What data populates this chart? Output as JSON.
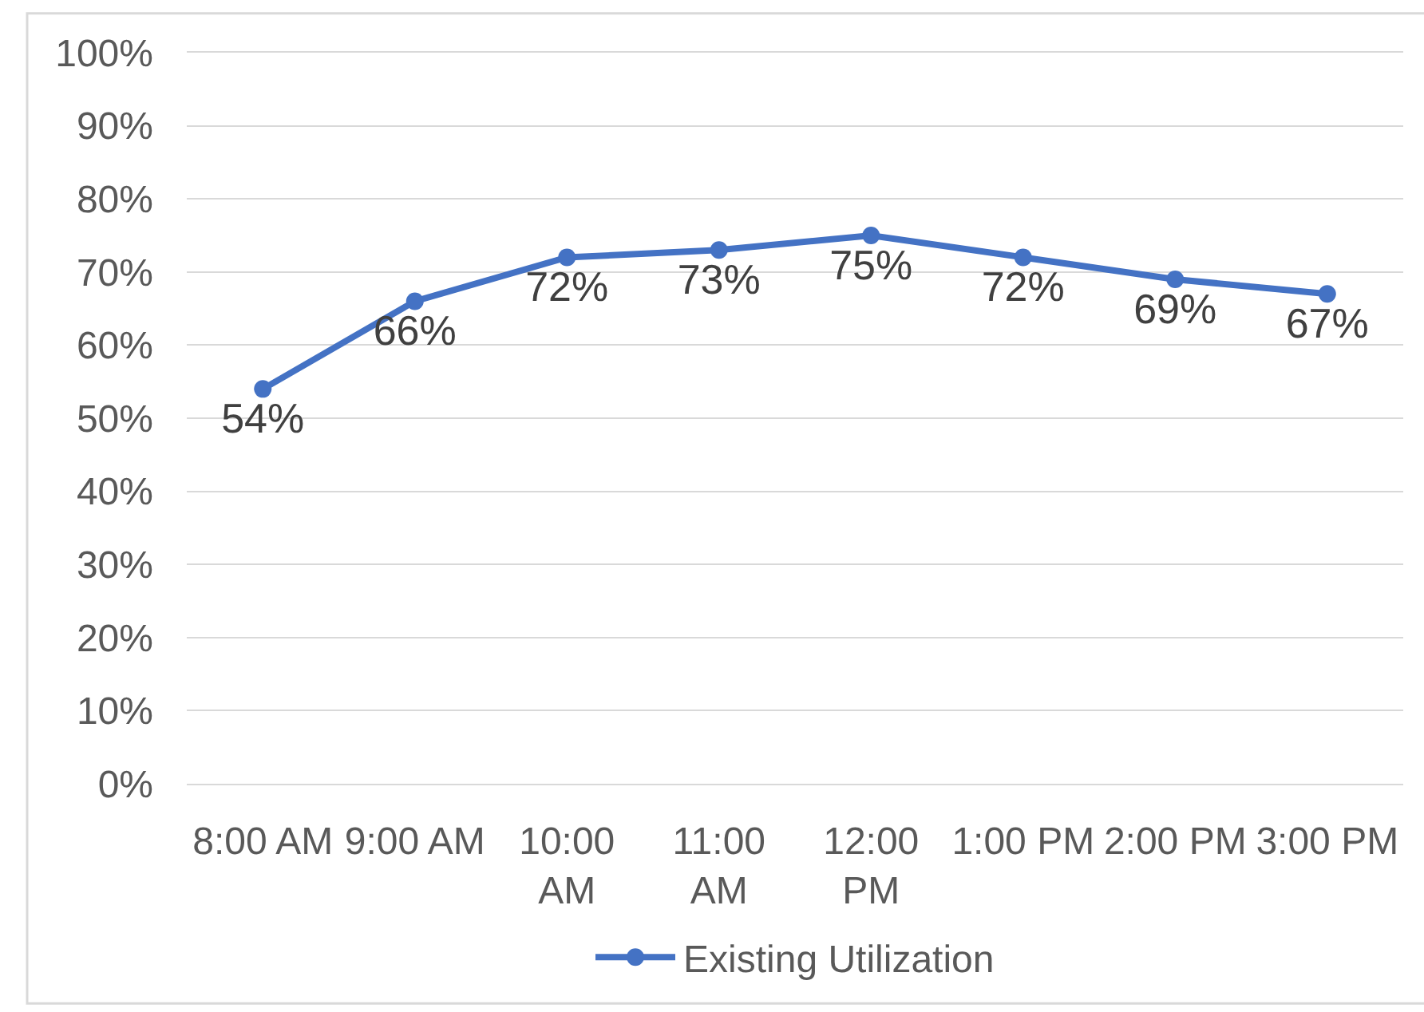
{
  "chart_data": {
    "type": "line",
    "categories": [
      "8:00 AM",
      "9:00 AM",
      "10:00 AM",
      "11:00 AM",
      "12:00 PM",
      "1:00 PM",
      "2:00 PM",
      "3:00 PM"
    ],
    "series": [
      {
        "name": "Existing Utilization",
        "color": "#4472c4",
        "values": [
          54,
          66,
          72,
          73,
          75,
          72,
          69,
          67
        ],
        "value_labels": [
          "54%",
          "66%",
          "72%",
          "73%",
          "75%",
          "72%",
          "69%",
          "67%"
        ]
      }
    ],
    "ylim": [
      0,
      100
    ],
    "yticks": [
      {
        "value": 0,
        "label": "0%"
      },
      {
        "value": 10,
        "label": "10%"
      },
      {
        "value": 20,
        "label": "20%"
      },
      {
        "value": 30,
        "label": "30%"
      },
      {
        "value": 40,
        "label": "40%"
      },
      {
        "value": 50,
        "label": "50%"
      },
      {
        "value": 60,
        "label": "60%"
      },
      {
        "value": 70,
        "label": "70%"
      },
      {
        "value": 80,
        "label": "80%"
      },
      {
        "value": 90,
        "label": "90%"
      },
      {
        "value": 100,
        "label": "100%"
      }
    ],
    "grid": "y",
    "legend": "bottom",
    "marker": "circle",
    "line_style": "solid"
  }
}
